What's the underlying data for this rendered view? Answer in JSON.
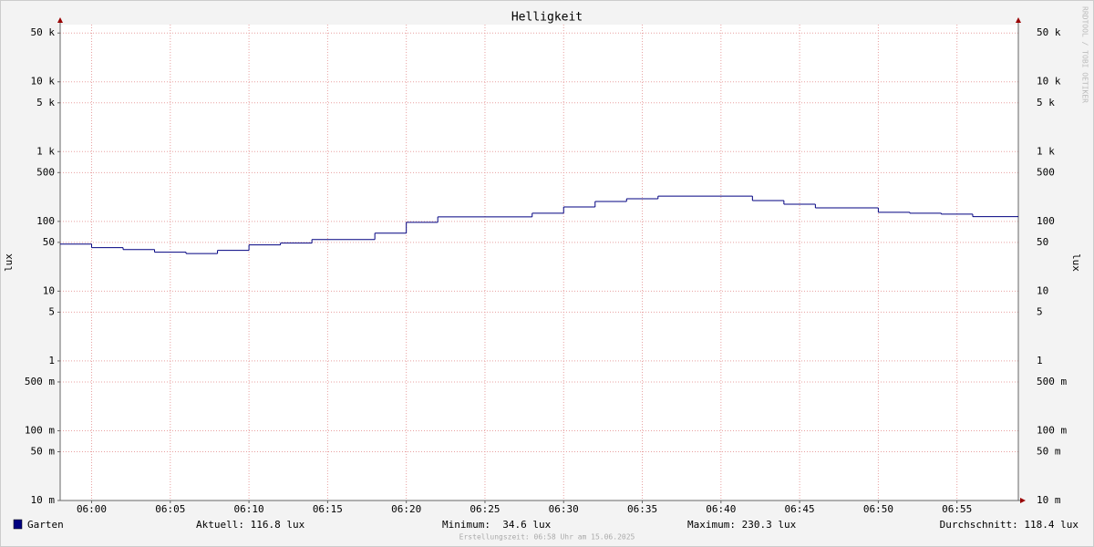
{
  "chart_data": {
    "type": "step",
    "title": "Helligkeit",
    "y_label": "lux",
    "y_scale": "log",
    "grid": true,
    "xlim": [
      358,
      418.9
    ],
    "xticks": [
      {
        "value": 360,
        "label": "06:00"
      },
      {
        "value": 365,
        "label": "06:05"
      },
      {
        "value": 370,
        "label": "06:10"
      },
      {
        "value": 375,
        "label": "06:15"
      },
      {
        "value": 380,
        "label": "06:20"
      },
      {
        "value": 385,
        "label": "06:25"
      },
      {
        "value": 390,
        "label": "06:30"
      },
      {
        "value": 395,
        "label": "06:35"
      },
      {
        "value": 400,
        "label": "06:40"
      },
      {
        "value": 405,
        "label": "06:45"
      },
      {
        "value": 410,
        "label": "06:50"
      },
      {
        "value": 415,
        "label": "06:55"
      }
    ],
    "ylim": [
      0.01,
      66000
    ],
    "yticks": [
      {
        "value": 50000,
        "label": "50 k"
      },
      {
        "value": 10000,
        "label": "10 k"
      },
      {
        "value": 5000,
        "label": "5 k"
      },
      {
        "value": 1000,
        "label": "1 k"
      },
      500,
      100,
      50,
      10,
      5,
      1,
      {
        "value": 0.5,
        "label": "500 m"
      },
      {
        "value": 0.1,
        "label": "100 m"
      },
      {
        "value": 0.05,
        "label": "50 m"
      },
      {
        "value": 0.01,
        "label": "10 m"
      }
    ],
    "x": [
      358,
      360,
      362,
      364,
      366,
      368,
      370,
      372,
      374,
      378,
      380,
      382,
      388,
      390,
      392,
      394,
      396,
      402,
      404,
      406,
      410,
      412,
      414,
      416
    ],
    "series": [
      {
        "name": "Garten",
        "color": "#000080",
        "values": [
          47.3,
          42,
          39.5,
          36.2,
          34.6,
          38.4,
          46,
          48.8,
          55,
          67.8,
          97,
          116,
          131,
          161,
          193,
          211,
          230.3,
          199,
          176,
          156,
          135,
          131,
          127,
          116.8
        ]
      }
    ],
    "legend_stats": [
      "Aktuell: 116.8 lux",
      "Minimum:  34.6 lux",
      "Maximum: 230.3 lux",
      "Durchschnitt: 118.4 lux"
    ],
    "footer": "Erstellungszeit: 06:58 Uhr am 15.06.2025",
    "watermark": "RRDTOOL / TOBI OETIKER"
  }
}
